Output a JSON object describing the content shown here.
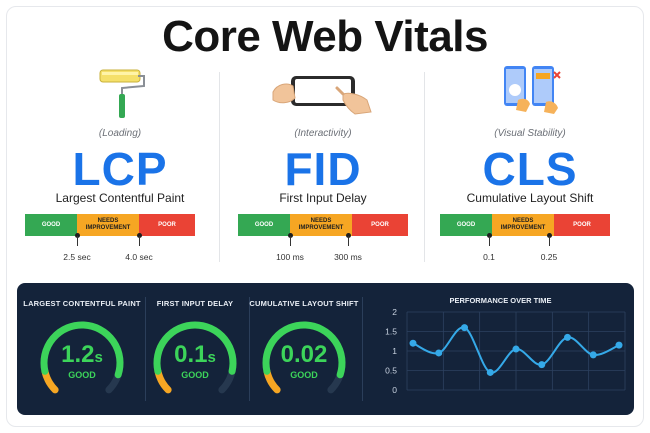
{
  "page": {
    "title": "Core Web Vitals"
  },
  "metrics": [
    {
      "illustration": "paint-roller-icon",
      "category": "(Loading)",
      "abbr": "LCP",
      "name": "Largest Contentful Paint",
      "segments": {
        "good": "GOOD",
        "needs_improvement": "NEEDS IMPROVEMENT",
        "poor": "POOR"
      },
      "thresholds": [
        "2.5 sec",
        "4.0 sec"
      ]
    },
    {
      "illustration": "hand-tapping-phone-icon",
      "category": "(Interactivity)",
      "abbr": "FID",
      "name": "First Input Delay",
      "segments": {
        "good": "GOOD",
        "needs_improvement": "NEEDS IMPROVEMENT",
        "poor": "POOR"
      },
      "thresholds": [
        "100 ms",
        "300 ms"
      ]
    },
    {
      "illustration": "layout-shift-phones-icon",
      "category": "(Visual Stability)",
      "abbr": "CLS",
      "name": "Cumulative Layout Shift",
      "segments": {
        "good": "GOOD",
        "needs_improvement": "NEEDS IMPROVEMENT",
        "poor": "POOR"
      },
      "thresholds": [
        "0.1",
        "0.25"
      ]
    }
  ],
  "colors": {
    "accent": "#1a73e8",
    "good": "#34a853",
    "needs_improvement": "#f6a623",
    "poor": "#ea4335",
    "dashboard_bg": "#14233a",
    "gauge_good": "#3cd45a",
    "line": "#35a9e8"
  },
  "dashboard": {
    "gauges": [
      {
        "title": "LARGEST CONTENTFUL PAINT",
        "value": "1.2",
        "unit": "s",
        "status": "GOOD",
        "fill": 0.9
      },
      {
        "title": "FIRST INPUT DELAY",
        "value": "0.1",
        "unit": "s",
        "status": "GOOD",
        "fill": 0.88
      },
      {
        "title": "CUMULATIVE LAYOUT SHIFT",
        "value": "0.02",
        "unit": "",
        "status": "GOOD",
        "fill": 0.9
      }
    ],
    "performance": {
      "title": "PERFORMANCE OVER TIME",
      "chart_data": {
        "type": "line",
        "title": "PERFORMANCE OVER TIME",
        "y_ticks": [
          "2",
          "1.5",
          "1",
          "0.5",
          "0"
        ],
        "ylim": [
          0,
          2
        ],
        "x": [
          1,
          2,
          3,
          4,
          5,
          6,
          7,
          8,
          9
        ],
        "values": [
          1.2,
          0.95,
          1.6,
          0.45,
          1.05,
          0.65,
          1.35,
          0.9,
          1.15
        ],
        "grid": true
      }
    }
  }
}
